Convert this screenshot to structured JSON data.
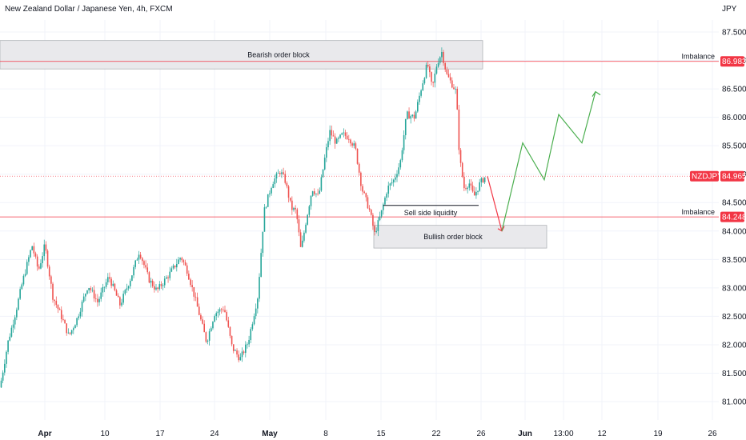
{
  "chart_data": {
    "type": "candlestick",
    "title": "New Zealand Dollar / Japanese Yen, 4h, FXCM",
    "currency": "JPY",
    "symbol": "NZDJPY",
    "last_price": "84.965",
    "ylim": [
      80.85,
      87.8
    ],
    "y_ticks": [
      "87.500",
      "87.000",
      "86.500",
      "86.000",
      "85.500",
      "85.000",
      "84.500",
      "84.000",
      "83.500",
      "83.000",
      "82.500",
      "82.000",
      "81.500",
      "81.000"
    ],
    "x_ticks": [
      "Apr",
      "10",
      "17",
      "24",
      "May",
      "8",
      "15",
      "22",
      "26",
      "Jun",
      "13:00",
      "12",
      "19",
      "26"
    ],
    "x_ticks_bold": [
      "Apr",
      "May",
      "Jun"
    ],
    "bull_color": "#26a69a",
    "bear_color": "#ef5350",
    "grid": true,
    "annotations": {
      "bearish_order_block": {
        "label": "Bearish order block",
        "price_top": 87.35,
        "price_bottom": 86.85
      },
      "bullish_order_block": {
        "label": "Bullish order block",
        "price_top": 84.1,
        "price_bottom": 83.7
      },
      "imbalance_upper": {
        "label": "Imbalance",
        "price": "86.983"
      },
      "imbalance_lower": {
        "label": "Imbalance",
        "price": "84.248"
      },
      "sell_side_liquidity": {
        "label": "Sell side liquidity",
        "price": 84.45
      }
    },
    "projection_down": [
      [
        84.96,
        84.0
      ]
    ],
    "projection_up": [
      84.0,
      85.55,
      84.9,
      86.05,
      85.55,
      86.45
    ],
    "anchors": [
      [
        0,
        81.25
      ],
      [
        10,
        82.05
      ],
      [
        20,
        82.6
      ],
      [
        28,
        83.1
      ],
      [
        40,
        83.75
      ],
      [
        48,
        83.3
      ],
      [
        56,
        83.75
      ],
      [
        66,
        82.85
      ],
      [
        78,
        82.45
      ],
      [
        86,
        82.15
      ],
      [
        96,
        82.45
      ],
      [
        110,
        83.05
      ],
      [
        122,
        82.75
      ],
      [
        136,
        83.2
      ],
      [
        150,
        82.7
      ],
      [
        164,
        83.2
      ],
      [
        174,
        83.65
      ],
      [
        186,
        83.15
      ],
      [
        196,
        82.95
      ],
      [
        212,
        83.25
      ],
      [
        226,
        83.55
      ],
      [
        234,
        83.3
      ],
      [
        244,
        82.8
      ],
      [
        258,
        82.05
      ],
      [
        268,
        82.55
      ],
      [
        280,
        82.65
      ],
      [
        290,
        81.95
      ],
      [
        300,
        81.75
      ],
      [
        310,
        82.05
      ],
      [
        322,
        82.85
      ],
      [
        330,
        84.35
      ],
      [
        340,
        84.85
      ],
      [
        350,
        85.05
      ],
      [
        356,
        84.9
      ],
      [
        364,
        84.4
      ],
      [
        370,
        84.35
      ],
      [
        376,
        83.65
      ],
      [
        382,
        84.15
      ],
      [
        390,
        84.75
      ],
      [
        398,
        84.6
      ],
      [
        406,
        85.3
      ],
      [
        412,
        85.75
      ],
      [
        420,
        85.55
      ],
      [
        428,
        85.7
      ],
      [
        436,
        85.65
      ],
      [
        444,
        85.45
      ],
      [
        452,
        84.75
      ],
      [
        462,
        84.35
      ],
      [
        468,
        83.95
      ],
      [
        476,
        84.3
      ],
      [
        484,
        84.75
      ],
      [
        492,
        84.9
      ],
      [
        500,
        85.2
      ],
      [
        508,
        86.05
      ],
      [
        518,
        86.0
      ],
      [
        526,
        86.5
      ],
      [
        534,
        86.95
      ],
      [
        540,
        86.5
      ],
      [
        546,
        86.95
      ],
      [
        552,
        87.15
      ],
      [
        558,
        86.75
      ],
      [
        566,
        86.55
      ],
      [
        570,
        86.45
      ],
      [
        574,
        85.3
      ],
      [
        580,
        84.75
      ],
      [
        586,
        84.85
      ],
      [
        592,
        84.6
      ],
      [
        600,
        84.85
      ],
      [
        606,
        84.95
      ]
    ]
  }
}
